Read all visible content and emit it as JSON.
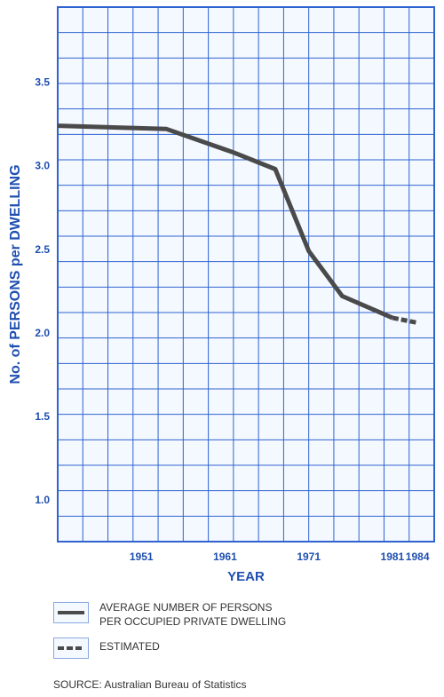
{
  "chart_data": {
    "type": "line",
    "ylabel": "No. of PERSONS per DWELLING",
    "xlabel": "YEAR",
    "x_ticks": [
      "1951",
      "1961",
      "1971",
      "1981",
      "1984"
    ],
    "y_ticks": [
      "1.0",
      "1.5",
      "2.0",
      "2.5",
      "3.0",
      "3.5"
    ],
    "xlim": [
      1941,
      1986
    ],
    "ylim": [
      0.75,
      3.95
    ],
    "grid": true,
    "series": [
      {
        "name": "AVERAGE NUMBER OF PERSONS PER OCCUPIED PRIVATE DWELLING",
        "style": "solid",
        "x": [
          1941,
          1954,
          1962,
          1967,
          1971,
          1975,
          1981
        ],
        "y": [
          3.24,
          3.22,
          3.08,
          2.98,
          2.49,
          2.22,
          2.09
        ]
      },
      {
        "name": "ESTIMATED",
        "style": "dashed",
        "x": [
          1981,
          1984
        ],
        "y": [
          2.09,
          2.06
        ]
      }
    ]
  },
  "legend": {
    "line_label_1": "AVERAGE NUMBER OF PERSONS",
    "line_label_2": "PER OCCUPIED PRIVATE DWELLING",
    "estimated_label": "ESTIMATED"
  },
  "source": {
    "prefix": "SOURCE:",
    "text": "Australian Bureau of Statistics"
  },
  "colors": {
    "grid": "#2f63d0",
    "text": "#1f4fb0",
    "line": "#4a4a4a",
    "background": "#f4f8ff"
  }
}
